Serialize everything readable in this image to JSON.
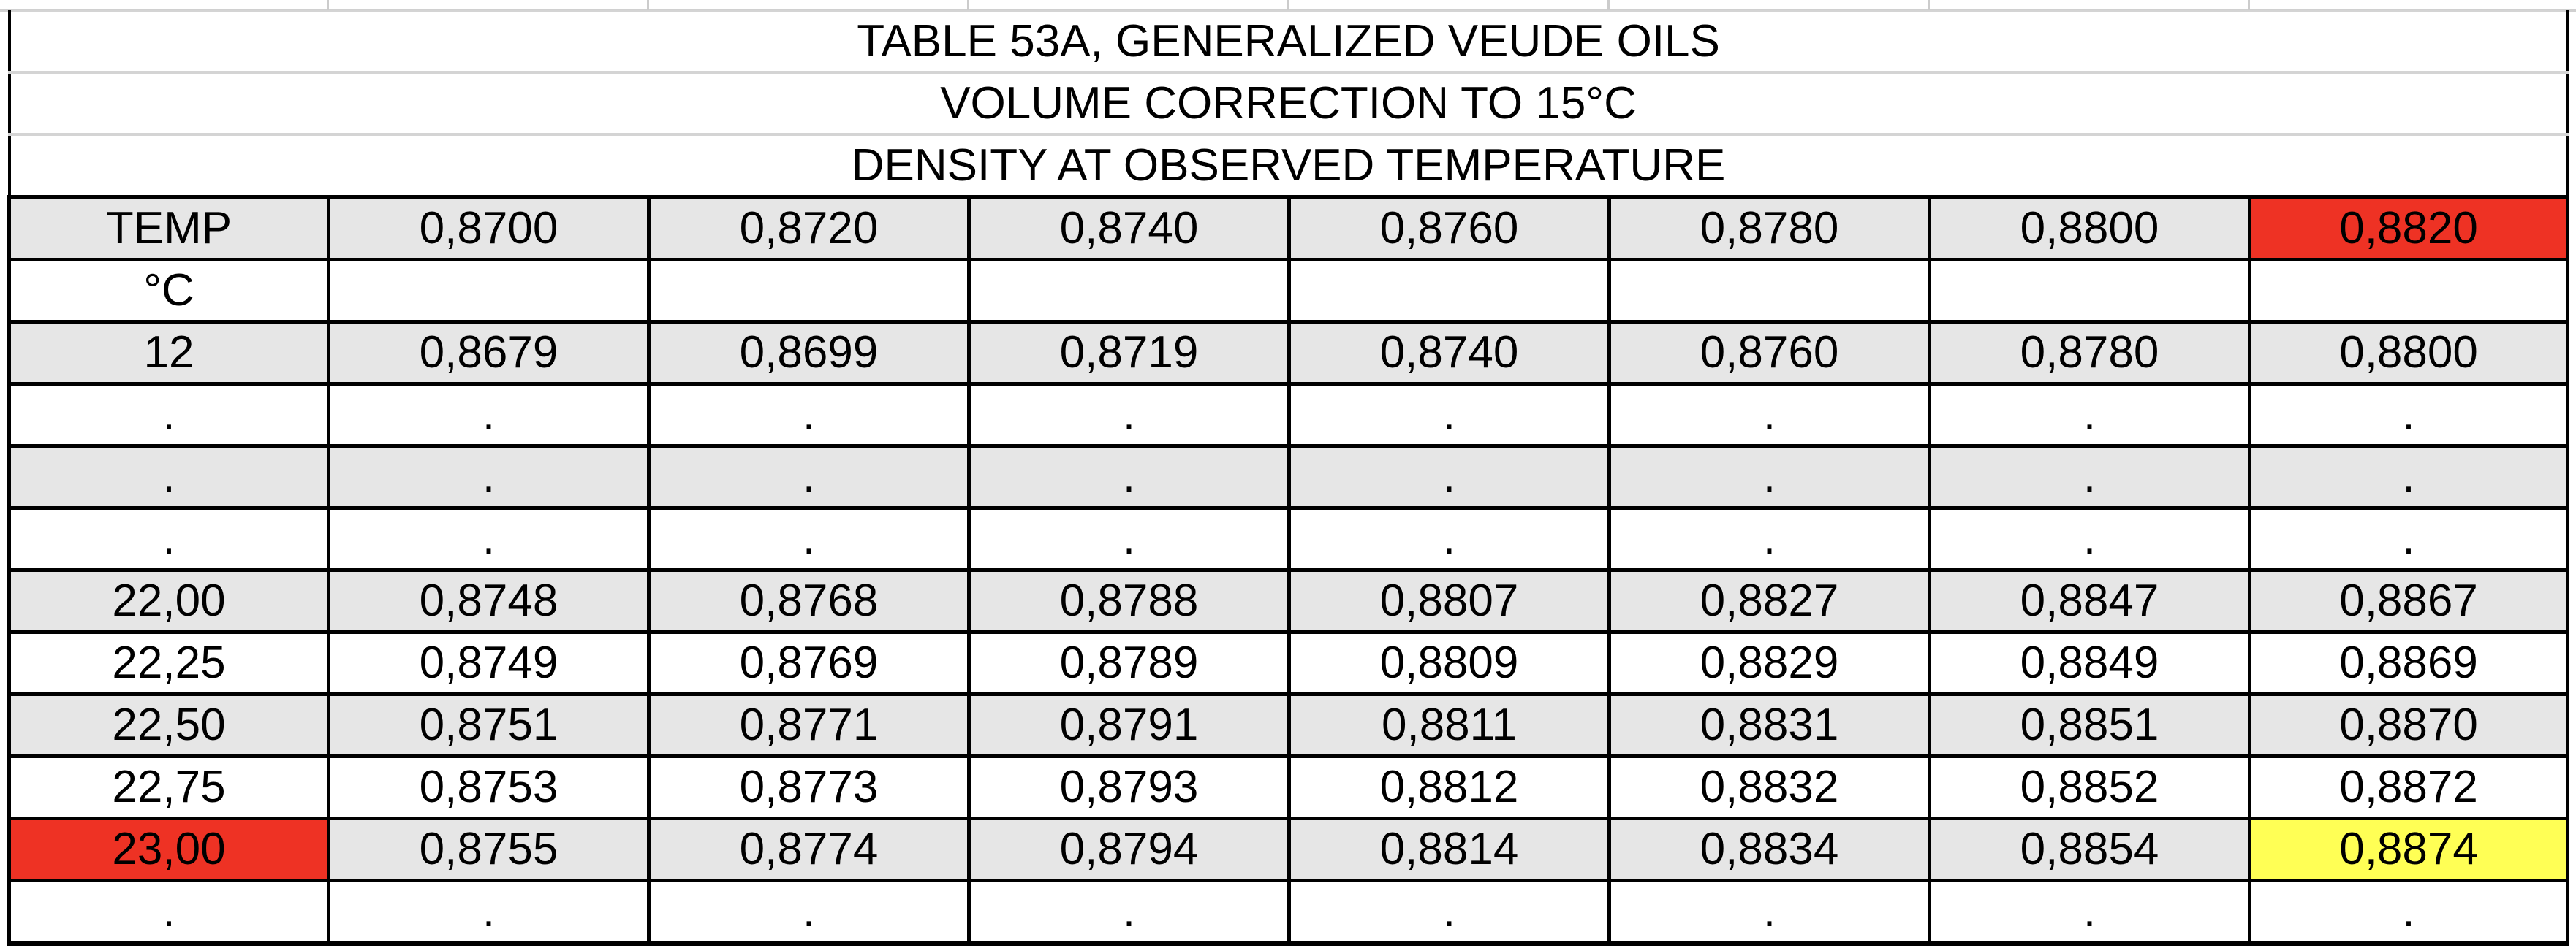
{
  "table": {
    "title_lines": [
      "TABLE 53A, GENERALIZED VEUDE OILS",
      "VOLUME CORRECTION TO 15°C",
      "DENSITY AT OBSERVED TEMPERATURE"
    ],
    "header": {
      "label": "TEMP",
      "unit": "°C",
      "densities": [
        "0,8700",
        "0,8720",
        "0,8740",
        "0,8760",
        "0,8780",
        "0,8800",
        "0,8820"
      ]
    },
    "rows": [
      {
        "temp": "12",
        "values": [
          "0,8679",
          "0,8699",
          "0,8719",
          "0,8740",
          "0,8760",
          "0,8780",
          "0,8800"
        ]
      },
      {
        "temp": ".",
        "values": [
          ".",
          ".",
          ".",
          ".",
          ".",
          ".",
          "."
        ]
      },
      {
        "temp": ".",
        "values": [
          ".",
          ".",
          ".",
          ".",
          ".",
          ".",
          "."
        ]
      },
      {
        "temp": ".",
        "values": [
          ".",
          ".",
          ".",
          ".",
          ".",
          ".",
          "."
        ]
      },
      {
        "temp": "22,00",
        "values": [
          "0,8748",
          "0,8768",
          "0,8788",
          "0,8807",
          "0,8827",
          "0,8847",
          "0,8867"
        ]
      },
      {
        "temp": "22,25",
        "values": [
          "0,8749",
          "0,8769",
          "0,8789",
          "0,8809",
          "0,8829",
          "0,8849",
          "0,8869"
        ]
      },
      {
        "temp": "22,50",
        "values": [
          "0,8751",
          "0,8771",
          "0,8791",
          "0,8811",
          "0,8831",
          "0,8851",
          "0,8870"
        ]
      },
      {
        "temp": "22,75",
        "values": [
          "0,8753",
          "0,8773",
          "0,8793",
          "0,8812",
          "0,8832",
          "0,8852",
          "0,8872"
        ]
      },
      {
        "temp": "23,00",
        "values": [
          "0,8755",
          "0,8774",
          "0,8794",
          "0,8814",
          "0,8834",
          "0,8854",
          "0,8874"
        ]
      },
      {
        "temp": ".",
        "values": [
          ".",
          ".",
          ".",
          ".",
          ".",
          ".",
          "."
        ]
      }
    ],
    "highlight_colors": {
      "selected_red": "#ee3224",
      "result_yellow": "#ffff55"
    }
  }
}
